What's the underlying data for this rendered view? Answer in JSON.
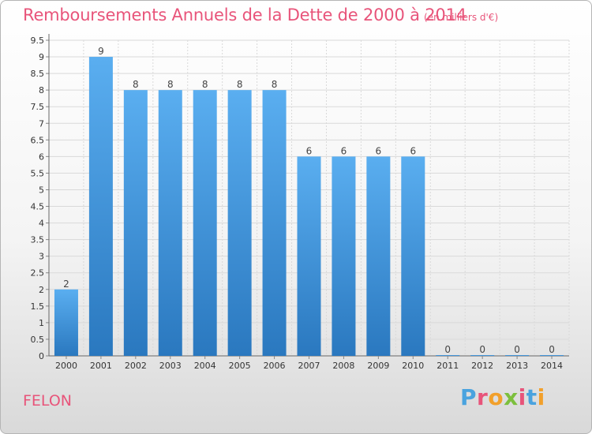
{
  "header": {
    "title": "Remboursements Annuels de la Dette de 2000 à 2014",
    "unit": "(en milliers d'€)"
  },
  "footer": {
    "city": "FELON",
    "logo_letters": [
      "P",
      "r",
      "o",
      "x",
      "i",
      "t",
      "i"
    ],
    "logo_colors": [
      "#4aa3df",
      "#e8547a",
      "#f2a02b",
      "#7cbf3d",
      "#e8547a",
      "#4aa3df",
      "#f2a02b"
    ]
  },
  "colors": {
    "bar_top": "#5aaef0",
    "bar_bottom": "#2a78bf",
    "grid": "#d9d9d9",
    "title": "#e8547a"
  },
  "chart_data": {
    "type": "bar",
    "categories": [
      "2000",
      "2001",
      "2002",
      "2003",
      "2004",
      "2005",
      "2006",
      "2007",
      "2008",
      "2009",
      "2010",
      "2011",
      "2012",
      "2013",
      "2014"
    ],
    "values": [
      2,
      9,
      8,
      8,
      8,
      8,
      8,
      6,
      6,
      6,
      6,
      0,
      0,
      0,
      0
    ],
    "value_labels": [
      "2",
      "9",
      "8",
      "8",
      "8",
      "8",
      "8",
      "6",
      "6",
      "6",
      "6",
      "0",
      "0",
      "0",
      "0"
    ],
    "title": "Remboursements Annuels de la Dette de 2000 à 2014",
    "xlabel": "",
    "ylabel": "",
    "ylim": [
      0,
      9.5
    ],
    "yticks": [
      0,
      0.5,
      1,
      1.5,
      2,
      2.5,
      3,
      3.5,
      4,
      4.5,
      5,
      5.5,
      6,
      6.5,
      7,
      7.5,
      8,
      8.5,
      9,
      9.5
    ],
    "ytick_labels": [
      "0",
      "0.5",
      "1",
      "1.5",
      "2",
      "2.5",
      "3",
      "3.5",
      "4",
      "4.5",
      "5",
      "5.5",
      "6",
      "6.5",
      "7",
      "7.5",
      "8",
      "8.5",
      "9",
      "9.5"
    ],
    "grid": true
  }
}
